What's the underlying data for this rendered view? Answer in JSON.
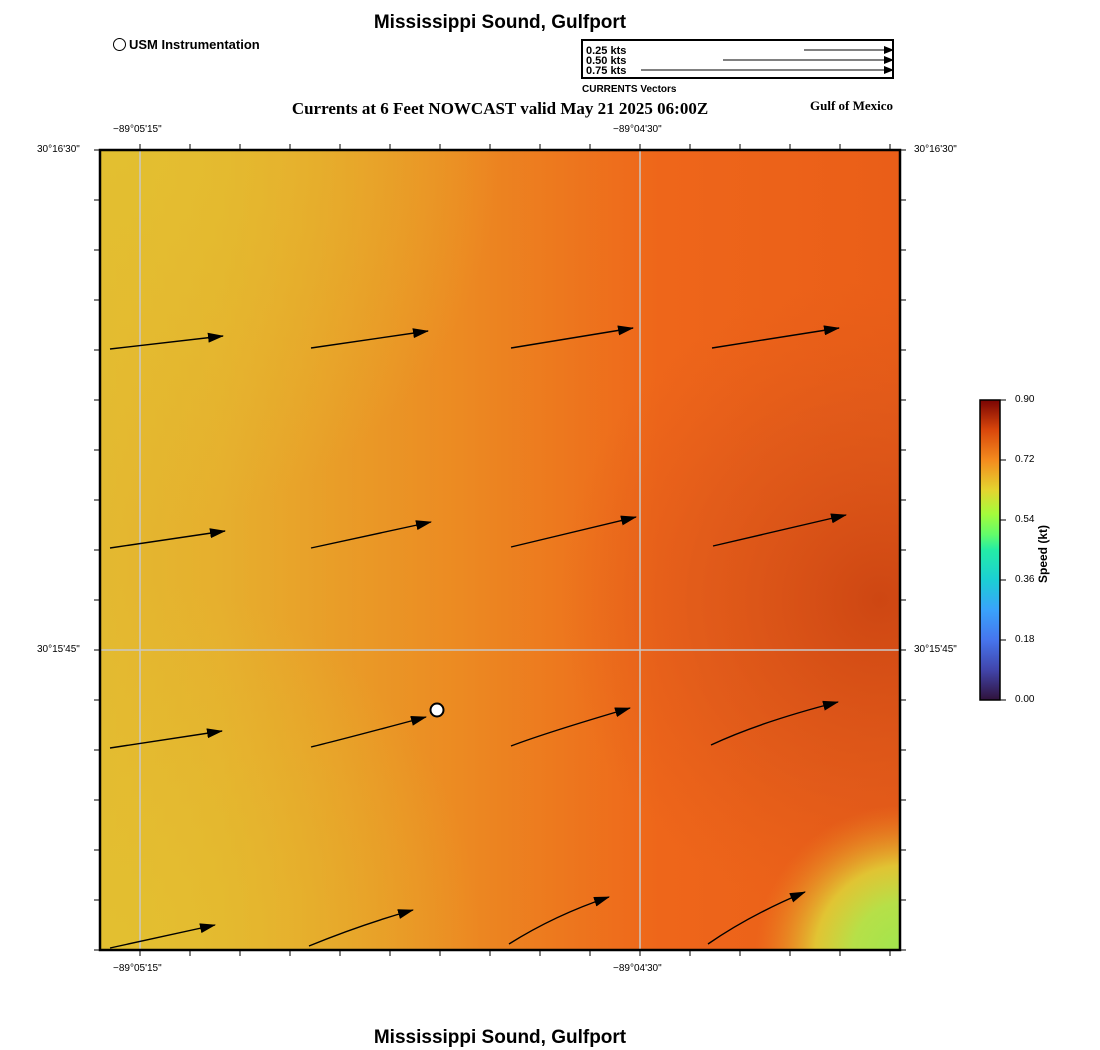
{
  "header": {
    "title": "Mississippi Sound, Gulfport",
    "subtitle": "Currents at 6 Feet NOWCAST valid May 21 2025 06:00Z",
    "region": "Gulf of Mexico",
    "station_label": "USM Instrumentation"
  },
  "footer": {
    "title": "Mississippi Sound, Gulfport"
  },
  "vector_legend": {
    "title": "CURRENTS Vectors",
    "entries": [
      {
        "label": "0.25 kts",
        "speed": 0.25
      },
      {
        "label": "0.50 kts",
        "speed": 0.5
      },
      {
        "label": "0.75 kts",
        "speed": 0.75
      }
    ]
  },
  "axes": {
    "lon_top": [
      "−89°05'15\"",
      "−89°04'30\""
    ],
    "lon_bottom": [
      "−89°05'15\"",
      "−89°04'30\""
    ],
    "lat_left": [
      "30°16'30\"",
      "30°15'45\""
    ],
    "lat_right": [
      "30°16'30\"",
      "30°15'45\""
    ]
  },
  "colorbar": {
    "title": "Speed (kt)",
    "ticks": [
      "0.90",
      "0.72",
      "0.54",
      "0.36",
      "0.18",
      "0.00"
    ],
    "min": 0.0,
    "max": 0.9
  },
  "colors": {
    "field_low": "#e3be30",
    "field_mid": "#ed7a1f",
    "field_high": "#d24c14",
    "field_green": "#a8e04a",
    "grid": "#c8c8c8"
  }
}
